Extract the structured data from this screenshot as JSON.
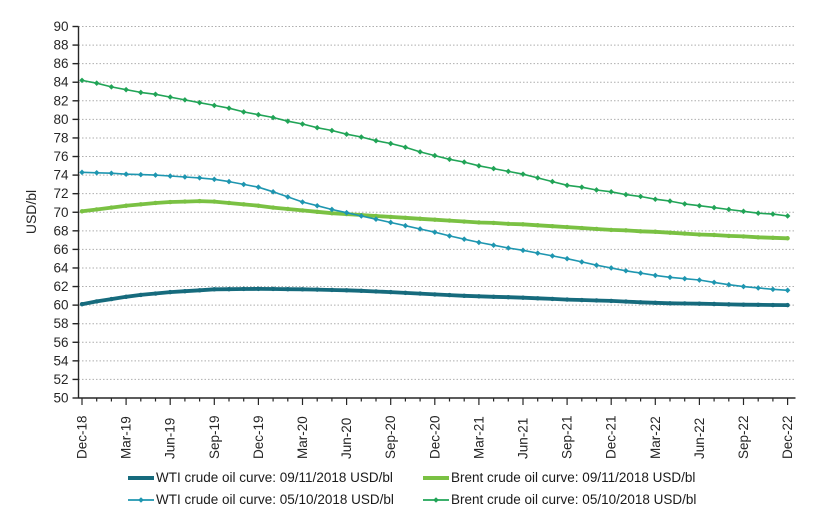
{
  "chart_data": {
    "type": "line",
    "title": "",
    "xlabel": "",
    "ylabel": "USD/bl",
    "ylim": [
      50,
      90
    ],
    "y_tick_step": 2,
    "grid": "horizontal dotted gridlines every 2 USD/bl",
    "legend_position": "bottom",
    "x_axis": {
      "unit": "month",
      "points": 49,
      "first": "Dec-18",
      "last": "Dec-22",
      "label_every_n_months": 3,
      "tick_labels": [
        "Dec-18",
        "Mar-19",
        "Jun-19",
        "Sep-19",
        "Dec-19",
        "Mar-20",
        "Jun-20",
        "Sep-20",
        "Dec-20",
        "Mar-21",
        "Jun-21",
        "Sep-21",
        "Dec-21",
        "Mar-22",
        "Jun-22",
        "Sep-22",
        "Dec-22"
      ]
    },
    "series": [
      {
        "name": "wti-crude-0911",
        "label": "WTI crude oil curve: 09/11/2018 USD/bl",
        "color": "#166b7d",
        "style": "thick",
        "values": [
          60.1,
          60.4,
          60.65,
          60.9,
          61.1,
          61.25,
          61.4,
          61.5,
          61.6,
          61.7,
          61.72,
          61.74,
          61.75,
          61.74,
          61.72,
          61.7,
          61.67,
          61.63,
          61.6,
          61.54,
          61.47,
          61.4,
          61.32,
          61.24,
          61.15,
          61.08,
          61.0,
          60.95,
          60.9,
          60.85,
          60.8,
          60.73,
          60.67,
          60.6,
          60.55,
          60.5,
          60.45,
          60.38,
          60.3,
          60.25,
          60.2,
          60.18,
          60.15,
          60.12,
          60.08,
          60.05,
          60.03,
          60.01,
          60.0
        ]
      },
      {
        "name": "brent-crude-0911",
        "label": "Brent crude oil curve: 09/11/2018 USD/bl",
        "color": "#7ac143",
        "style": "thick",
        "values": [
          70.1,
          70.3,
          70.5,
          70.7,
          70.85,
          71.0,
          71.1,
          71.15,
          71.2,
          71.15,
          71.0,
          70.85,
          70.7,
          70.5,
          70.35,
          70.2,
          70.05,
          69.9,
          69.8,
          69.7,
          69.6,
          69.5,
          69.4,
          69.3,
          69.2,
          69.1,
          69.0,
          68.9,
          68.85,
          68.75,
          68.7,
          68.6,
          68.5,
          68.4,
          68.3,
          68.2,
          68.1,
          68.05,
          67.95,
          67.9,
          67.8,
          67.7,
          67.6,
          67.55,
          67.45,
          67.4,
          67.3,
          67.25,
          67.2
        ]
      },
      {
        "name": "wti-crude-0510",
        "label": "WTI crude oil curve: 05/10/2018 USD/bl",
        "color": "#1e96b0",
        "style": "thin-marker",
        "values": [
          74.3,
          74.25,
          74.2,
          74.1,
          74.05,
          74.0,
          73.9,
          73.8,
          73.7,
          73.55,
          73.3,
          73.0,
          72.7,
          72.2,
          71.65,
          71.1,
          70.7,
          70.3,
          69.95,
          69.6,
          69.25,
          68.9,
          68.55,
          68.2,
          67.85,
          67.45,
          67.1,
          66.75,
          66.45,
          66.15,
          65.9,
          65.6,
          65.3,
          65.0,
          64.65,
          64.3,
          64.0,
          63.7,
          63.45,
          63.2,
          63.0,
          62.85,
          62.7,
          62.45,
          62.2,
          62.0,
          61.85,
          61.7,
          61.6
        ]
      },
      {
        "name": "brent-crude-0510",
        "label": "Brent crude oil curve: 05/10/2018 USD/bl",
        "color": "#21a457",
        "style": "thin-marker",
        "values": [
          84.2,
          83.9,
          83.5,
          83.2,
          82.9,
          82.7,
          82.4,
          82.1,
          81.8,
          81.5,
          81.2,
          80.8,
          80.5,
          80.2,
          79.8,
          79.5,
          79.1,
          78.8,
          78.4,
          78.1,
          77.7,
          77.4,
          77.0,
          76.5,
          76.1,
          75.7,
          75.4,
          75.0,
          74.7,
          74.4,
          74.1,
          73.7,
          73.3,
          72.9,
          72.7,
          72.4,
          72.2,
          71.9,
          71.7,
          71.4,
          71.2,
          70.9,
          70.7,
          70.5,
          70.3,
          70.1,
          69.9,
          69.8,
          69.6
        ]
      }
    ],
    "style_colors": {
      "axis": "#262626",
      "gridline": "#aeaeae",
      "tick_text": "#262626"
    }
  }
}
